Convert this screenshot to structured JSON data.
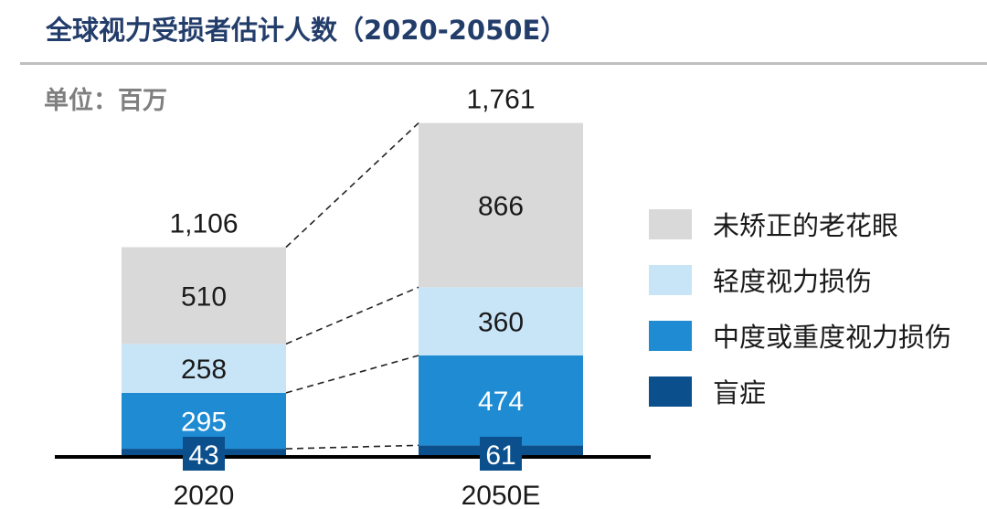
{
  "title": "全球视力受损者估计人数（2020-2050E）",
  "unit": "单位：百万",
  "chart_data": {
    "type": "bar",
    "stacked": true,
    "title": "全球视力受损者估计人数（2020-2050E）",
    "ylabel": "单位：百万",
    "categories": [
      "2020",
      "2050E"
    ],
    "totals": [
      "1,106",
      "1,761"
    ],
    "series": [
      {
        "name": "盲症",
        "values": [
          43,
          61
        ],
        "color": "#0b4f8c"
      },
      {
        "name": "中度或重度视力损伤",
        "values": [
          295,
          474
        ],
        "color": "#1e8bd2"
      },
      {
        "name": "轻度视力损伤",
        "values": [
          258,
          360
        ],
        "color": "#c8e5f8"
      },
      {
        "name": "未矫正的老花眼",
        "values": [
          510,
          866
        ],
        "color": "#d9d9d9"
      }
    ],
    "legend_order": [
      "未矫正的老花眼",
      "轻度视力损伤",
      "中度或重度视力损伤",
      "盲症"
    ],
    "legend_position": "right",
    "ylim": [
      0,
      1800
    ],
    "grid": false
  }
}
